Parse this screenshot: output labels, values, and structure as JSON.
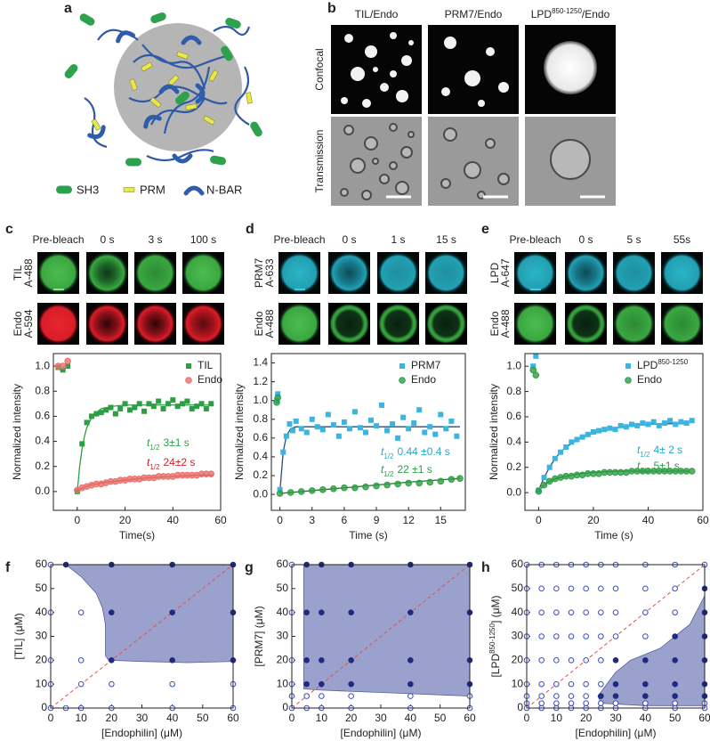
{
  "panel_labels": [
    "a",
    "b",
    "c",
    "d",
    "e",
    "f",
    "g",
    "h"
  ],
  "panel_a": {
    "legend": [
      "SH3",
      "PRM",
      "N-BAR"
    ]
  },
  "panel_b": {
    "columns": [
      "TIL/Endo",
      "PRM7/Endo",
      [
        "LPD",
        "850-1250",
        "/Endo"
      ]
    ],
    "rows": [
      "Confocal",
      "Transmission"
    ]
  },
  "frap": [
    {
      "times": [
        "Pre-bleach",
        "0 s",
        "3 s",
        "100 s"
      ],
      "rows": [
        [
          "TIL",
          "A-488"
        ],
        [
          "Endo",
          "A-594"
        ]
      ]
    },
    {
      "times": [
        "Pre-bleach",
        "0 s",
        "1 s",
        "15 s"
      ],
      "rows": [
        [
          "PRM7",
          "A-633"
        ],
        [
          "Endo",
          "A-488"
        ]
      ]
    },
    {
      "times": [
        "Pre-bleach",
        "0 s",
        "5 s",
        "55s"
      ],
      "rows": [
        [
          "LPD",
          "A-647"
        ],
        [
          "Endo",
          "A-488"
        ]
      ]
    }
  ],
  "chart_data": [
    {
      "type": "frap",
      "xlabel": "Time(s)",
      "ylabel": "Normalized intensity",
      "xlim": [
        -10,
        60
      ],
      "xticks": [
        0,
        20,
        40,
        60
      ],
      "ylim": [
        -0.15,
        1.1
      ],
      "yticks": [
        {
          "value": 0,
          "label": "0.0"
        },
        0.2,
        0.4,
        0.6,
        0.8,
        {
          "value": 1,
          "label": "1.0"
        }
      ],
      "series": [
        {
          "name": "TIL",
          "color": "#2e9e44",
          "marker": "square",
          "x": [
            -8,
            -6,
            -4,
            0,
            2,
            4,
            6,
            8,
            10,
            12,
            14,
            16,
            18,
            20,
            22,
            24,
            26,
            28,
            30,
            32,
            34,
            36,
            38,
            40,
            42,
            44,
            46,
            48,
            50,
            52,
            54,
            56
          ],
          "values": [
            0.99,
            0.97,
            1.0,
            0.0,
            0.38,
            0.55,
            0.6,
            0.62,
            0.63,
            0.65,
            0.67,
            0.62,
            0.66,
            0.7,
            0.65,
            0.67,
            0.7,
            0.64,
            0.7,
            0.68,
            0.72,
            0.66,
            0.7,
            0.73,
            0.68,
            0.7,
            0.72,
            0.66,
            0.68,
            0.7,
            0.66,
            0.7
          ]
        },
        {
          "name": "Endo",
          "color": "#e8706a",
          "marker": "circle",
          "x": [
            -8,
            -6,
            -4,
            0,
            2,
            4,
            6,
            8,
            10,
            12,
            14,
            16,
            18,
            20,
            22,
            24,
            26,
            28,
            30,
            32,
            34,
            36,
            38,
            40,
            42,
            44,
            46,
            48,
            50,
            52,
            54,
            56
          ],
          "values": [
            1.0,
            1.0,
            1.04,
            0.01,
            0.03,
            0.04,
            0.05,
            0.06,
            0.06,
            0.07,
            0.08,
            0.08,
            0.09,
            0.09,
            0.1,
            0.1,
            0.1,
            0.11,
            0.11,
            0.11,
            0.12,
            0.12,
            0.12,
            0.12,
            0.13,
            0.13,
            0.13,
            0.13,
            0.13,
            0.14,
            0.14,
            0.14
          ]
        }
      ],
      "fits": [
        {
          "color": "#2e9e44",
          "x": [
            0,
            1,
            2,
            3,
            4,
            6,
            8,
            10,
            15,
            20,
            30,
            40,
            57
          ],
          "values": [
            0,
            0.2,
            0.34,
            0.44,
            0.51,
            0.59,
            0.63,
            0.66,
            0.68,
            0.69,
            0.69,
            0.69,
            0.69
          ]
        },
        {
          "color": "#b8282e",
          "x": [
            0,
            5,
            10,
            15,
            20,
            30,
            40,
            50,
            57
          ],
          "values": [
            0.01,
            0.05,
            0.07,
            0.08,
            0.09,
            0.11,
            0.12,
            0.13,
            0.13
          ]
        }
      ],
      "annotations": [
        {
          "symbol": "t",
          "subscript": "1/2",
          "text": "3±1 s",
          "color": "#2e9e44"
        },
        {
          "symbol": "t",
          "subscript": "1/2",
          "text": "24±2 s",
          "color": "#c0282e"
        }
      ]
    },
    {
      "type": "frap",
      "xlabel": "Time (s)",
      "ylabel": "Normalized intensity",
      "xlim": [
        -0.8,
        17.3
      ],
      "xticks": [
        0,
        3,
        6,
        9,
        12,
        15
      ],
      "ylim": [
        -0.17,
        1.5
      ],
      "yticks": [
        {
          "value": 0,
          "label": "0.0"
        },
        0.2,
        0.4,
        0.6,
        0.8,
        {
          "value": 1,
          "label": "1.0"
        },
        1.2,
        1.4
      ],
      "series": [
        {
          "name": "PRM7",
          "color": "#3ab4e0",
          "marker": "square",
          "x": [
            -0.3,
            -0.2,
            0,
            0.3,
            0.6,
            0.9,
            1.2,
            1.5,
            2,
            2.5,
            3,
            3.5,
            4,
            4.5,
            5,
            5.5,
            6,
            6.5,
            7,
            7.5,
            8,
            8.5,
            9,
            9.5,
            10,
            10.5,
            11,
            11.5,
            12,
            12.5,
            13,
            13.5,
            14,
            14.5,
            15,
            15.5,
            16,
            16.5
          ],
          "values": [
            1.0,
            1.07,
            0.05,
            0.45,
            0.62,
            0.75,
            0.68,
            0.78,
            0.7,
            0.66,
            0.8,
            0.72,
            0.69,
            0.85,
            0.74,
            0.62,
            0.77,
            0.7,
            0.88,
            0.71,
            0.66,
            0.79,
            0.73,
            0.95,
            0.68,
            0.75,
            0.6,
            0.82,
            0.7,
            0.76,
            0.9,
            0.66,
            0.72,
            0.64,
            0.85,
            0.7,
            0.78,
            0.62
          ]
        },
        {
          "name": "Endo",
          "color": "#2e9e44",
          "marker": "circle",
          "x": [
            -0.3,
            -0.2,
            0,
            1,
            2,
            3,
            4,
            5,
            6,
            7,
            8,
            9,
            10,
            11,
            12,
            13,
            14,
            15,
            16,
            16.8
          ],
          "values": [
            0.98,
            1.03,
            0.01,
            0.02,
            0.03,
            0.04,
            0.05,
            0.06,
            0.07,
            0.07,
            0.08,
            0.09,
            0.1,
            0.11,
            0.12,
            0.12,
            0.13,
            0.14,
            0.16,
            0.17
          ]
        }
      ],
      "fits": [
        {
          "color": "#23507a",
          "x": [
            0,
            0.3,
            0.6,
            1,
            1.5,
            2,
            4,
            8,
            16.8
          ],
          "values": [
            0.03,
            0.45,
            0.62,
            0.7,
            0.72,
            0.72,
            0.72,
            0.72,
            0.72
          ]
        },
        {
          "color": "#1d6e2c",
          "x": [
            0,
            4,
            8,
            12,
            16.8
          ],
          "values": [
            0.01,
            0.05,
            0.09,
            0.13,
            0.17
          ]
        }
      ],
      "annotations": [
        {
          "symbol": "t",
          "subscript": "1/2",
          "text": "0.44 ±0.4 s",
          "color": "#2aa6cc"
        },
        {
          "symbol": "t",
          "subscript": "1/2",
          "text": "22 ±1 s",
          "color": "#2e9e44"
        }
      ]
    },
    {
      "type": "frap",
      "xlabel": "Time (s)",
      "ylabel": "Normalized intensity",
      "xlim": [
        -5,
        60
      ],
      "xticks": [
        0,
        20,
        40,
        60
      ],
      "ylim": [
        -0.14,
        1.1
      ],
      "yticks": [
        {
          "value": 0,
          "label": "0.0"
        },
        0.2,
        0.4,
        0.6,
        0.8,
        {
          "value": 1,
          "label": "1.0"
        }
      ],
      "series": [
        {
          "name": [
            "LPD",
            "850-1250"
          ],
          "color": "#3ab4e0",
          "marker": "square",
          "x": [
            -2,
            -1,
            0,
            2,
            4,
            6,
            8,
            10,
            12,
            14,
            16,
            18,
            20,
            22,
            24,
            26,
            28,
            30,
            32,
            34,
            36,
            38,
            40,
            42,
            44,
            46,
            48,
            50,
            52,
            54,
            56
          ],
          "values": [
            1.0,
            1.08,
            0.02,
            0.12,
            0.2,
            0.27,
            0.32,
            0.36,
            0.4,
            0.42,
            0.44,
            0.46,
            0.48,
            0.49,
            0.5,
            0.51,
            0.5,
            0.53,
            0.52,
            0.54,
            0.53,
            0.55,
            0.54,
            0.56,
            0.53,
            0.55,
            0.57,
            0.54,
            0.56,
            0.55,
            0.57
          ]
        },
        {
          "name": "Endo",
          "color": "#2e9e44",
          "marker": "circle",
          "x": [
            -2,
            -1,
            0,
            2,
            4,
            6,
            8,
            10,
            12,
            14,
            16,
            18,
            20,
            22,
            24,
            26,
            28,
            30,
            32,
            34,
            36,
            38,
            40,
            42,
            44,
            46,
            48,
            50,
            52,
            54,
            56
          ],
          "values": [
            0.97,
            0.93,
            0.01,
            0.06,
            0.09,
            0.11,
            0.12,
            0.13,
            0.13,
            0.14,
            0.14,
            0.15,
            0.15,
            0.15,
            0.16,
            0.16,
            0.16,
            0.16,
            0.16,
            0.17,
            0.17,
            0.17,
            0.17,
            0.17,
            0.17,
            0.17,
            0.17,
            0.17,
            0.17,
            0.17,
            0.17
          ]
        }
      ],
      "fits": [
        {
          "color": "#23507a",
          "x": [
            0,
            2,
            4,
            6,
            8,
            10,
            15,
            20,
            30,
            40,
            55
          ],
          "values": [
            0.02,
            0.12,
            0.2,
            0.27,
            0.32,
            0.36,
            0.43,
            0.47,
            0.52,
            0.54,
            0.55
          ]
        },
        {
          "color": "#1d6e2c",
          "x": [
            0,
            2,
            4,
            6,
            10,
            15,
            20,
            30,
            55
          ],
          "values": [
            0.01,
            0.06,
            0.09,
            0.11,
            0.13,
            0.15,
            0.16,
            0.17,
            0.17
          ]
        }
      ],
      "annotations": [
        {
          "symbol": "t",
          "subscript": "1/2",
          "text": "4± 2 s",
          "color": "#2aa6cc"
        },
        {
          "symbol": "t",
          "subscript": "1/2",
          "text": "5±1 s",
          "color": "#2e9e44"
        }
      ]
    },
    {
      "type": "phase",
      "xlabel": "[Endophilin] (μM)",
      "ylabel": "[TIL] (μM)",
      "xlim": [
        0,
        60
      ],
      "xticks": [
        0,
        10,
        20,
        30,
        40,
        50,
        60
      ],
      "ylim": [
        0,
        60
      ],
      "yticks": [
        0,
        10,
        20,
        30,
        40,
        50,
        60
      ],
      "grid_x": [
        0,
        5,
        10,
        20,
        40,
        60
      ],
      "grid_y": [
        0,
        10,
        20,
        40,
        60
      ],
      "filled": [
        [
          0,
          0,
          0,
          0,
          0,
          0
        ],
        [
          0,
          null,
          0,
          0,
          0,
          0
        ],
        [
          0,
          null,
          0,
          1,
          1,
          1
        ],
        [
          0,
          null,
          0,
          1,
          1,
          1
        ],
        [
          0,
          1,
          null,
          1,
          1,
          1
        ]
      ],
      "region": {
        "x": [
          5,
          10,
          15,
          17,
          18,
          18,
          19,
          30,
          45,
          60,
          60
        ],
        "y": [
          60,
          55,
          48,
          42,
          35,
          22,
          20,
          19.5,
          19,
          19.5,
          60
        ]
      },
      "region_color": "#8a90c4",
      "open_color": "#3b4cc0",
      "filled_color": "#1f2a80",
      "diagonal_color": "#e05050"
    },
    {
      "type": "phase",
      "xlabel": "[Endophilin] (μM)",
      "ylabel": "[PRM7] (μM)",
      "xlim": [
        0,
        60
      ],
      "xticks": [
        0,
        10,
        20,
        30,
        40,
        50,
        60
      ],
      "ylim": [
        0,
        60
      ],
      "yticks": [
        0,
        10,
        20,
        30,
        40,
        50,
        60
      ],
      "grid_x": [
        0,
        5,
        10,
        20,
        40,
        60
      ],
      "grid_y": [
        0,
        5,
        10,
        20,
        40,
        60
      ],
      "filled": [
        [
          0,
          0,
          0,
          0,
          0,
          0
        ],
        [
          0,
          0,
          0,
          0,
          0,
          0
        ],
        [
          0,
          1,
          1,
          1,
          1,
          1
        ],
        [
          0,
          1,
          1,
          1,
          1,
          1
        ],
        [
          0,
          1,
          1,
          1,
          1,
          1
        ],
        [
          0,
          1,
          1,
          1,
          1,
          1
        ]
      ],
      "region": {
        "x": [
          4,
          4,
          10,
          20,
          40,
          60,
          60
        ],
        "y": [
          60,
          8,
          7.5,
          7,
          6,
          5,
          60
        ]
      },
      "region_color": "#8a90c4",
      "open_color": "#3b4cc0",
      "filled_color": "#1f2a80",
      "diagonal_color": "#e05050"
    },
    {
      "type": "phase",
      "xlabel": "[Endophilin] (μM)",
      "ylabel": [
        "[LPD",
        "850-1250",
        "] (μM)"
      ],
      "xlim": [
        0,
        60
      ],
      "xticks": [
        0,
        10,
        20,
        30,
        40,
        50,
        60
      ],
      "ylim": [
        0,
        60
      ],
      "yticks": [
        0,
        10,
        20,
        30,
        40,
        50,
        60
      ],
      "grid_x": [
        0,
        5,
        10,
        15,
        20,
        25,
        30,
        40,
        50,
        60
      ],
      "grid_y": [
        0,
        2,
        5,
        10,
        20,
        30,
        40,
        50,
        60
      ],
      "filled": [
        [
          0,
          0,
          0,
          0,
          0,
          0,
          0,
          0,
          0,
          0
        ],
        [
          0,
          0,
          0,
          0,
          0,
          0,
          0,
          0,
          0,
          0
        ],
        [
          0,
          0,
          0,
          0,
          0,
          1,
          1,
          1,
          1,
          1
        ],
        [
          0,
          0,
          0,
          0,
          0,
          0,
          1,
          1,
          1,
          1
        ],
        [
          0,
          0,
          0,
          0,
          0,
          0,
          1,
          1,
          1,
          1
        ],
        [
          0,
          0,
          0,
          0,
          0,
          0,
          0,
          0,
          1,
          1
        ],
        [
          0,
          0,
          0,
          0,
          0,
          0,
          0,
          0,
          0,
          1
        ],
        [
          0,
          0,
          0,
          0,
          0,
          0,
          0,
          0,
          0,
          1
        ],
        [
          0,
          0,
          0,
          0,
          0,
          0,
          0,
          0,
          0,
          0
        ]
      ],
      "region": {
        "x": [
          24,
          27,
          30,
          35,
          45,
          55,
          60,
          60,
          40,
          25
        ],
        "y": [
          5,
          10,
          15,
          20,
          25,
          35,
          47,
          1,
          1,
          2
        ]
      },
      "region_color": "#8a90c4",
      "open_color": "#3b4cc0",
      "filled_color": "#1f2a80",
      "diagonal_color": "#e05050"
    }
  ]
}
